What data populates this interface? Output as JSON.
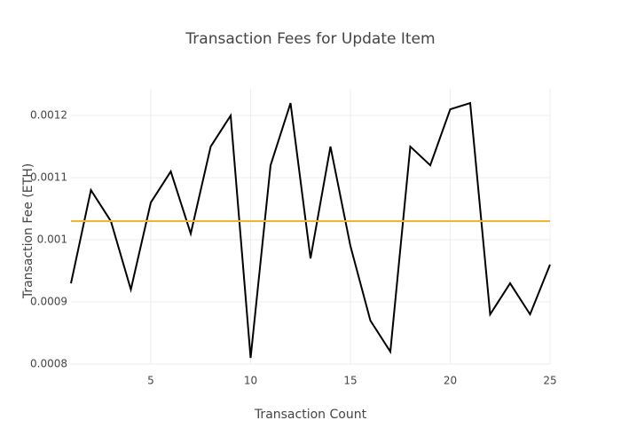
{
  "chart_data": {
    "type": "line",
    "title": "Transaction Fees for Update Item",
    "x_label": "Transaction Count",
    "y_label": "Transaction Fee (ETH)",
    "series": [
      {
        "color": "#000000",
        "x": [
          1,
          2,
          3,
          4,
          5,
          6,
          7,
          8,
          9,
          10,
          11,
          12,
          13,
          14,
          15,
          16,
          17,
          18,
          19,
          20,
          21,
          22,
          23,
          24,
          25
        ],
        "values": [
          0.00093,
          0.00108,
          0.00103,
          0.00092,
          0.00106,
          0.00111,
          0.00101,
          0.00115,
          0.0012,
          0.00081,
          0.00112,
          0.00122,
          0.00097,
          0.00115,
          0.00099,
          0.00087,
          0.00082,
          0.00115,
          0.00112,
          0.00121,
          0.00122,
          0.00088,
          0.00093,
          0.00088,
          0.00096
        ]
      },
      {
        "color": "#f5b335",
        "x": [
          1,
          25
        ],
        "values": [
          0.00103,
          0.00103
        ]
      }
    ],
    "xlim": [
      1,
      25
    ],
    "xticks": [
      5,
      10,
      15,
      20,
      25
    ],
    "ylim": [
      0.0008,
      0.001243
    ],
    "yticks": [
      0.0008,
      0.0009,
      0.001,
      0.0011,
      0.0012
    ],
    "grid": true
  }
}
